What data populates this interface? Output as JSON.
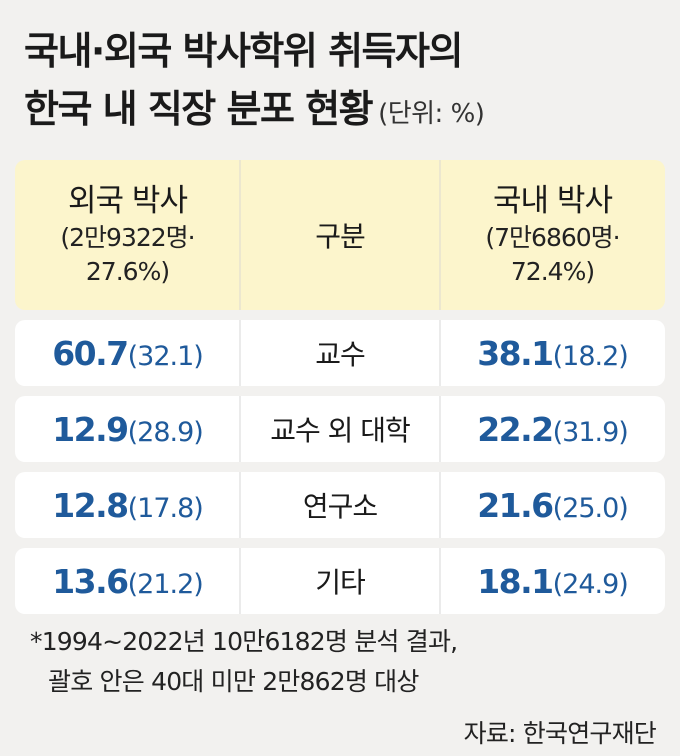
{
  "title_line1": "국내·외국 박사학위 취득자의",
  "title_line2": "한국 내 직장 분포 현황",
  "unit": "(단위: %)",
  "header": {
    "left_title": "외국 박사",
    "left_sub1": "(2만9322명·",
    "left_sub2": "27.6%)",
    "mid": "구분",
    "right_title": "국내 박사",
    "right_sub1": "(7만6860명·",
    "right_sub2": "72.4%)"
  },
  "rows": [
    {
      "category": "교수",
      "left_main": "60.7",
      "left_paren": "(32.1)",
      "right_main": "38.1",
      "right_paren": "(18.2)"
    },
    {
      "category": "교수 외 대학",
      "left_main": "12.9",
      "left_paren": "(28.9)",
      "right_main": "22.2",
      "right_paren": "(31.9)"
    },
    {
      "category": "연구소",
      "left_main": "12.8",
      "left_paren": "(17.8)",
      "right_main": "21.6",
      "right_paren": "(25.0)"
    },
    {
      "category": "기타",
      "left_main": "13.6",
      "left_paren": "(21.2)",
      "right_main": "18.1",
      "right_paren": "(24.9)"
    }
  ],
  "footnote_line1": "*1994~2022년 10만6182명 분석 결과,",
  "footnote_line2": "괄호 안은 40대 미만 2만862명 대상",
  "source": "자료: 한국연구재단",
  "colors": {
    "value_blue": "#1f5a9b",
    "header_bg": "#fcf5cc",
    "row_bg": "#ffffff",
    "page_bg": "#f2f1ef"
  },
  "chart_data": {
    "type": "table",
    "title": "국내·외국 박사학위 취득자의 한국 내 직장 분포 현황",
    "unit": "%",
    "columns": [
      "외국 박사",
      "구분",
      "국내 박사"
    ],
    "categories": [
      "교수",
      "교수 외 대학",
      "연구소",
      "기타"
    ],
    "series": [
      {
        "name": "외국 박사",
        "values": [
          60.7,
          12.9,
          12.8,
          13.6
        ],
        "under40_values": [
          32.1,
          28.9,
          17.8,
          21.2
        ]
      },
      {
        "name": "국내 박사",
        "values": [
          38.1,
          22.2,
          21.6,
          18.1
        ],
        "under40_values": [
          18.2,
          31.9,
          25.0,
          24.9
        ]
      }
    ]
  }
}
